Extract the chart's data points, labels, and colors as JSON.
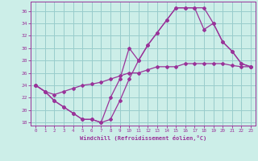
{
  "xlabel": "Windchill (Refroidissement éolien,°C)",
  "background_color": "#cceee8",
  "grid_color": "#99cccc",
  "line_color": "#993399",
  "xlim": [
    -0.5,
    23.5
  ],
  "ylim": [
    17.5,
    37.5
  ],
  "xticks": [
    0,
    1,
    2,
    3,
    4,
    5,
    6,
    7,
    8,
    9,
    10,
    11,
    12,
    13,
    14,
    15,
    16,
    17,
    18,
    19,
    20,
    21,
    22,
    23
  ],
  "yticks": [
    18,
    20,
    22,
    24,
    26,
    28,
    30,
    32,
    34,
    36
  ],
  "line1_x": [
    0,
    1,
    2,
    3,
    4,
    5,
    6,
    7,
    8,
    9,
    10,
    11,
    12,
    13,
    14,
    15,
    16,
    17,
    18,
    19,
    20,
    21,
    22,
    23
  ],
  "line1_y": [
    24,
    23,
    21.5,
    20.5,
    19.5,
    18.5,
    18.5,
    18,
    18.5,
    21.5,
    25,
    28,
    30.5,
    32.5,
    34.5,
    36.5,
    36.5,
    36.5,
    36.5,
    34,
    31,
    29.5,
    27.5,
    27
  ],
  "line2_x": [
    0,
    1,
    2,
    3,
    4,
    5,
    6,
    7,
    8,
    9,
    10,
    11,
    12,
    13,
    14,
    15,
    16,
    17,
    18,
    19,
    20,
    21,
    22,
    23
  ],
  "line2_y": [
    24,
    23,
    22.5,
    23,
    23.5,
    24,
    24.2,
    24.5,
    25,
    25.5,
    26,
    26,
    26.5,
    27,
    27,
    27,
    27.5,
    27.5,
    27.5,
    27.5,
    27.5,
    27.2,
    27,
    27
  ],
  "line3_x": [
    0,
    1,
    2,
    3,
    4,
    5,
    6,
    7,
    8,
    9,
    10,
    11,
    12,
    13,
    14,
    15,
    16,
    17,
    18,
    19,
    20,
    21,
    22,
    23
  ],
  "line3_y": [
    24,
    23,
    21.5,
    20.5,
    19.5,
    18.5,
    18.5,
    18,
    22,
    25,
    30,
    28,
    30.5,
    32.5,
    34.5,
    36.5,
    36.5,
    36.5,
    33,
    34,
    31,
    29.5,
    27.5,
    27
  ]
}
